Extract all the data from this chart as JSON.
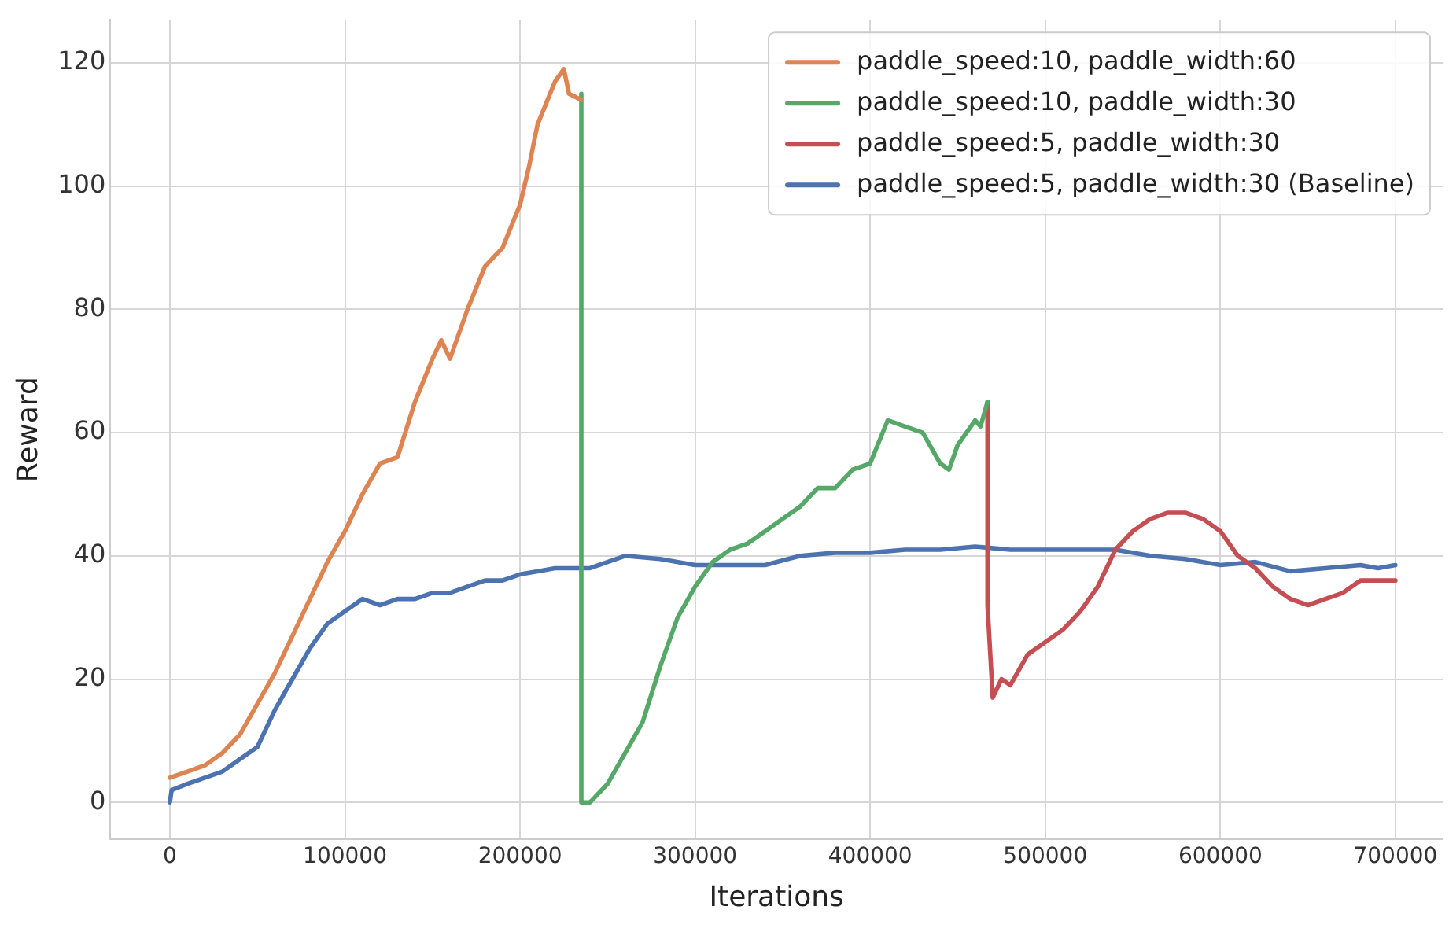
{
  "chart_data": {
    "type": "line",
    "xlabel": "Iterations",
    "ylabel": "Reward",
    "xlim": [
      -34000,
      727000
    ],
    "xticks": [
      0,
      100000,
      200000,
      300000,
      400000,
      500000,
      600000,
      700000
    ],
    "ylim": [
      -6,
      127
    ],
    "yticks": [
      0,
      20,
      40,
      60,
      80,
      100,
      120
    ],
    "grid": true,
    "legend": "top right",
    "marker": "none",
    "line_style": "solid",
    "series": [
      {
        "name": "paddle_speed:10, paddle_width:60",
        "color": "#dd8452",
        "x": [
          0,
          10000,
          20000,
          30000,
          40000,
          50000,
          60000,
          70000,
          80000,
          90000,
          100000,
          110000,
          120000,
          130000,
          140000,
          150000,
          155000,
          160000,
          170000,
          180000,
          190000,
          200000,
          205000,
          210000,
          220000,
          225000,
          228000,
          235000
        ],
        "values": [
          4,
          5,
          6,
          8,
          11,
          16,
          21,
          27,
          33,
          39,
          44,
          50,
          55,
          56,
          65,
          72,
          75,
          72,
          80,
          87,
          90,
          97,
          103,
          110,
          117,
          119,
          115,
          114
        ]
      },
      {
        "name": "paddle_speed:10, paddle_width:30",
        "color": "#55a868",
        "x": [
          235000,
          235000,
          240000,
          250000,
          260000,
          270000,
          280000,
          290000,
          300000,
          310000,
          320000,
          330000,
          340000,
          350000,
          360000,
          370000,
          380000,
          390000,
          400000,
          410000,
          420000,
          430000,
          440000,
          445000,
          450000,
          460000,
          463000,
          467000
        ],
        "values": [
          115,
          0,
          0,
          3,
          8,
          13,
          22,
          30,
          35,
          39,
          41,
          42,
          44,
          46,
          48,
          51,
          51,
          54,
          55,
          62,
          61,
          60,
          55,
          54,
          58,
          62,
          61,
          65
        ]
      },
      {
        "name": "paddle_speed:5, paddle_width:30",
        "color": "#c44e52",
        "x": [
          467000,
          467000,
          470000,
          475000,
          480000,
          490000,
          500000,
          510000,
          520000,
          530000,
          540000,
          550000,
          560000,
          570000,
          580000,
          590000,
          600000,
          610000,
          620000,
          630000,
          640000,
          650000,
          660000,
          670000,
          680000,
          690000,
          700000
        ],
        "values": [
          65,
          32,
          17,
          20,
          19,
          24,
          26,
          28,
          31,
          35,
          41,
          44,
          46,
          47,
          47,
          46,
          44,
          40,
          38,
          35,
          33,
          32,
          33,
          34,
          36,
          36,
          36
        ]
      },
      {
        "name": "paddle_speed:5, paddle_width:30 (Baseline)",
        "color": "#4c72b0",
        "x": [
          0,
          1000,
          10000,
          20000,
          30000,
          40000,
          50000,
          60000,
          70000,
          80000,
          90000,
          100000,
          110000,
          120000,
          130000,
          140000,
          150000,
          160000,
          170000,
          180000,
          190000,
          200000,
          210000,
          220000,
          230000,
          240000,
          250000,
          260000,
          280000,
          300000,
          320000,
          340000,
          360000,
          380000,
          400000,
          420000,
          440000,
          460000,
          480000,
          500000,
          520000,
          540000,
          560000,
          580000,
          600000,
          620000,
          640000,
          660000,
          680000,
          690000,
          700000
        ],
        "values": [
          0,
          2,
          3,
          4,
          5,
          7,
          9,
          15,
          20,
          25,
          29,
          31,
          33,
          32,
          33,
          33,
          34,
          34,
          35,
          36,
          36,
          37,
          37.5,
          38,
          38,
          38,
          39,
          40,
          39.5,
          38.5,
          38.5,
          38.5,
          40,
          40.5,
          40.5,
          41,
          41,
          41.5,
          41,
          41,
          41,
          41,
          40,
          39.5,
          38.5,
          39,
          37.5,
          38,
          38.5,
          38,
          38.5
        ]
      }
    ]
  }
}
